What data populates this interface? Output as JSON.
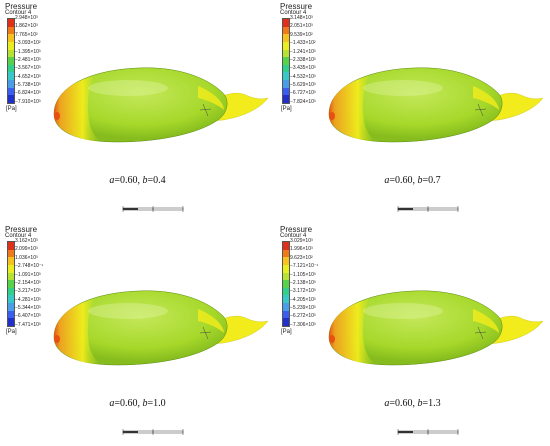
{
  "panels": [
    {
      "legend": {
        "title": "Pressure",
        "subtitle": "Contour 4",
        "unit": "[Pa]",
        "ticks": [
          "2.948×10³",
          "1.862×10³",
          "7.765×10²",
          "−3.093×10²",
          "−1.395×10³",
          "−2.481×10³",
          "−3.567×10³",
          "−4.652×10³",
          "−5.738×10³",
          "−6.824×10³",
          "−7.910×10³"
        ]
      },
      "caption": {
        "a_var": "a",
        "a_val": "=0.60, ",
        "b_var": "b",
        "b_val": "=0.4"
      }
    },
    {
      "legend": {
        "title": "Pressure",
        "subtitle": "Contour 4",
        "unit": "[Pa]",
        "ticks": [
          "3.148×10³",
          "2.051×10³",
          "9.539×10²",
          "−1.433×10²",
          "−1.241×10³",
          "−2.338×10³",
          "−3.435×10³",
          "−4.532×10³",
          "−5.629×10³",
          "−6.727×10³",
          "−7.824×10³"
        ]
      },
      "caption": {
        "a_var": "a",
        "a_val": "=0.60, ",
        "b_var": "b",
        "b_val": "=0.7"
      }
    },
    {
      "legend": {
        "title": "Pressure",
        "subtitle": "Contour 4",
        "unit": "[Pa]",
        "ticks": [
          "3.162×10³",
          "2.099×10³",
          "1.036×10³",
          "−2.748×10⁻¹",
          "−1.091×10³",
          "−2.154×10³",
          "−3.217×10³",
          "−4.281×10³",
          "−5.344×10³",
          "−6.407×10³",
          "−7.471×10³"
        ]
      },
      "caption": {
        "a_var": "a",
        "a_val": "=0.60, ",
        "b_var": "b",
        "b_val": "=1.0"
      }
    },
    {
      "legend": {
        "title": "Pressure",
        "subtitle": "Contour 4",
        "unit": "[Pa]",
        "ticks": [
          "3.029×10³",
          "1.996×10³",
          "9.623×10²",
          "−7.121×10⁻¹",
          "−1.105×10³",
          "−2.138×10³",
          "−3.172×10³",
          "−4.205×10³",
          "−5.239×10³",
          "−6.272×10³",
          "−7.306×10³"
        ]
      },
      "caption": {
        "a_var": "a",
        "a_val": "=0.60, ",
        "b_var": "b",
        "b_val": "=1.3"
      }
    }
  ],
  "colors": {
    "body": "#a6d82a",
    "tail": "#f2ec1c",
    "nose": "#f0a020",
    "stagnation": "#e85010",
    "edge": "#5a8a10",
    "bands": [
      "#e0301a",
      "#f07a1a",
      "#f6c21e",
      "#e8ee20",
      "#b6e233",
      "#58d24a",
      "#30d08a",
      "#38c8c8",
      "#4a9ee8",
      "#3a5ef0",
      "#2030c8"
    ]
  }
}
